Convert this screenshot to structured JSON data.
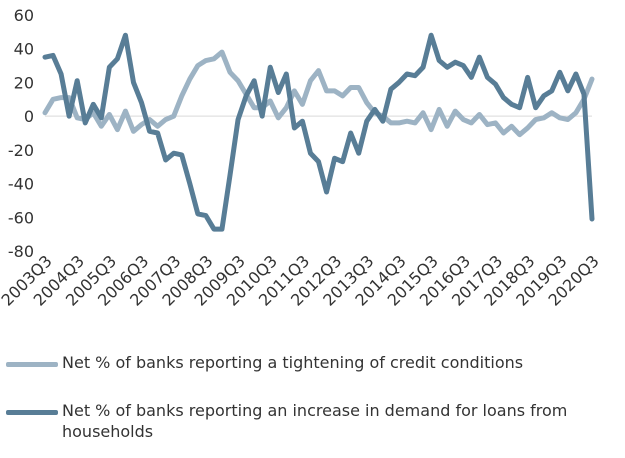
{
  "chart_data": {
    "type": "line",
    "title": "",
    "xlabel": "",
    "ylabel": "",
    "ylim": [
      -80,
      60
    ],
    "yticks": [
      60,
      40,
      20,
      0,
      -20,
      -40,
      -60,
      -80
    ],
    "grid": false,
    "legend_position": "bottom",
    "x_tick_labels": [
      "2003Q3",
      "2004Q3",
      "2005Q3",
      "2006Q3",
      "2007Q3",
      "2008Q3",
      "2009Q3",
      "2010Q3",
      "2011Q3",
      "2012Q3",
      "2013Q3",
      "2014Q3",
      "2015Q3",
      "2016Q3",
      "2017Q3",
      "2018Q3",
      "2019Q3",
      "2020Q3"
    ],
    "x_start": "2003Q3",
    "x_end": "2020Q4",
    "series": [
      {
        "name": "Net % of banks reporting a tightening of credit conditions",
        "color": "#9db3c4",
        "values": [
          2,
          10,
          11,
          11,
          -1,
          -2,
          2,
          -6,
          1,
          -8,
          3,
          -9,
          -5,
          -2,
          -6,
          -2,
          0,
          12,
          22,
          30,
          33,
          34,
          38,
          26,
          21,
          13,
          5,
          5,
          9,
          -1,
          5,
          15,
          7,
          21,
          27,
          15,
          15,
          12,
          17,
          17,
          8,
          2,
          0,
          -4,
          -4,
          -3,
          -4,
          2,
          -8,
          4,
          -6,
          3,
          -2,
          -4,
          1,
          -5,
          -4,
          -10,
          -6,
          -11,
          -7,
          -2,
          -1,
          2,
          -1,
          -2,
          2,
          10,
          22
        ]
      },
      {
        "name": "Net % of banks reporting an increase in demand for loans from households",
        "color": "#587d96",
        "values": [
          35,
          36,
          25,
          0,
          21,
          -4,
          7,
          -1,
          29,
          34,
          48,
          20,
          8,
          -9,
          -10,
          -26,
          -22,
          -23,
          -40,
          -58,
          -59,
          -67,
          -67,
          -35,
          -2,
          12,
          21,
          0,
          29,
          14,
          25,
          -7,
          -3,
          -22,
          -27,
          -45,
          -25,
          -27,
          -10,
          -22,
          -3,
          4,
          -3,
          16,
          20,
          25,
          24,
          29,
          48,
          33,
          29,
          32,
          30,
          23,
          35,
          23,
          19,
          11,
          7,
          5,
          23,
          5,
          12,
          15,
          26,
          15,
          25,
          13,
          -61
        ]
      }
    ]
  }
}
